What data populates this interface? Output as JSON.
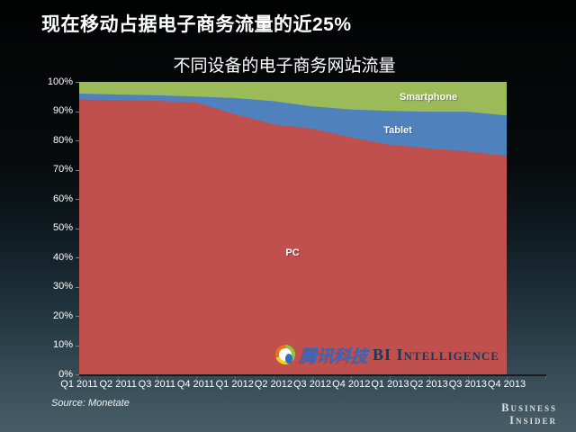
{
  "slide": {
    "title": "现在移动占据电子商务流量的近25%",
    "source_note": "Source: Monetate",
    "watermark": {
      "logo_icon": "tencent-tech-logo",
      "cjk": "腾讯科技",
      "latin": "BI Intelligence"
    },
    "brand": {
      "line1": "Business",
      "line2": "Insider"
    },
    "colors": {
      "background_top": "#000000",
      "background_bottom": "#485d67",
      "text": "#ffffff"
    }
  },
  "chart_data": {
    "type": "area",
    "stacked": true,
    "title": "不同设备的电子商务网站流量",
    "xlabel": "",
    "ylabel": "",
    "ylim": [
      0,
      100
    ],
    "grid": false,
    "legend_position": "labels-on-chart",
    "categories": [
      "Q1 2011",
      "Q2 2011",
      "Q3 2011",
      "Q4 2011",
      "Q1 2012",
      "Q2 2012",
      "Q3 2012",
      "Q4 2012",
      "Q1 2013",
      "Q2 2013",
      "Q3 2013",
      "Q4 2013"
    ],
    "y_ticks": [
      "100%",
      "90%",
      "80%",
      "70%",
      "60%",
      "50%",
      "40%",
      "30%",
      "20%",
      "10%",
      "0%"
    ],
    "series": [
      {
        "name": "PC",
        "color": "#c0504d",
        "values": [
          94.0,
          93.8,
          93.5,
          93.0,
          89.0,
          85.5,
          84.0,
          81.0,
          78.5,
          77.3,
          76.2,
          74.7
        ]
      },
      {
        "name": "Tablet",
        "color": "#4f81bd",
        "values": [
          2.0,
          1.9,
          1.9,
          2.0,
          5.5,
          7.9,
          7.6,
          9.6,
          11.6,
          12.5,
          13.6,
          13.8
        ]
      },
      {
        "name": "Smartphone",
        "color": "#9bbb59",
        "values": [
          4.0,
          4.3,
          4.6,
          5.0,
          5.5,
          6.6,
          8.4,
          9.4,
          9.9,
          10.2,
          10.2,
          11.5
        ]
      }
    ]
  }
}
